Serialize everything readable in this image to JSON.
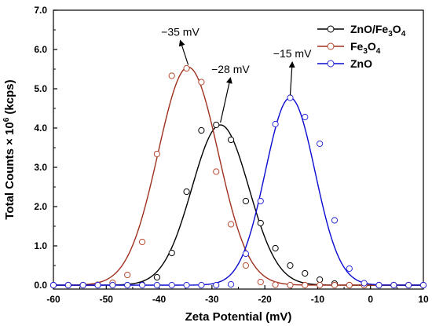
{
  "chart_data": {
    "type": "line",
    "xlabel": "Zeta Potential (mV)",
    "ylabel": {
      "prefix": "Total Counts × 10",
      "sup": "6",
      "suffix": " (kcps)"
    },
    "xlim": [
      -60,
      10
    ],
    "ylim": [
      -0.1,
      7.0
    ],
    "xticks": [
      "-60",
      "-50",
      "-40",
      "-30",
      "-20",
      "-10",
      "0",
      "10"
    ],
    "xtick_values": [
      -60,
      -50,
      -40,
      -30,
      -20,
      -10,
      0,
      10
    ],
    "yticks": [
      "0.0",
      "1.0",
      "2.0",
      "3.0",
      "4.0",
      "5.0",
      "6.0",
      "7.0"
    ],
    "ytick_values": [
      0,
      1,
      2,
      3,
      4,
      5,
      6,
      7
    ],
    "legend_position": "top-right",
    "series": [
      {
        "key": "znofe",
        "name": "ZnO/Fe₃O₄",
        "legend": {
          "main": "ZnO/Fe",
          "sub": "3",
          "mid": "O",
          "sub2": "4"
        },
        "color": "#000000",
        "marker_edge": "#000000",
        "peak_mean": -28.4,
        "peak_sd": 5.4,
        "peak_height": 4.08,
        "markers_x": [
          -60,
          -57.2,
          -54.4,
          -51.6,
          -48.8,
          -46,
          -43.2,
          -40.4,
          -37.6,
          -34.8,
          -32,
          -29.2,
          -26.4,
          -23.6,
          -20.8,
          -18,
          -15.2,
          -12.4,
          -9.6,
          -6.8,
          -4,
          -1.2,
          1.6,
          4.4,
          7.2,
          10
        ],
        "markers_y": [
          0,
          0,
          0,
          0,
          0,
          0,
          0.01,
          0.2,
          0.82,
          2.38,
          3.94,
          4.08,
          3.7,
          2.14,
          1.58,
          0.94,
          0.5,
          0.3,
          0.14,
          0.04,
          0,
          0,
          0,
          0,
          0,
          0
        ]
      },
      {
        "key": "fe",
        "name": "Fe₃O₄",
        "legend": {
          "main": "Fe",
          "sub": "3",
          "mid": "O",
          "sub2": "4"
        },
        "color": "#a0301e",
        "marker_edge": "#b5472e",
        "peak_mean": -34.5,
        "peak_sd": 5.7,
        "peak_height": 5.55,
        "markers_x": [
          -60,
          -57.2,
          -54.4,
          -51.6,
          -48.8,
          -46,
          -43.2,
          -40.4,
          -37.6,
          -34.8,
          -32,
          -29.2,
          -26.4,
          -23.6,
          -20.8,
          -18,
          -15.2,
          -12.4,
          -9.6,
          -6.8,
          -4,
          -1.2,
          1.6,
          4.4,
          7.2,
          10
        ],
        "markers_y": [
          0,
          0,
          0,
          0.01,
          0.06,
          0.26,
          1.1,
          3.34,
          5.33,
          5.52,
          5.17,
          2.89,
          1.55,
          0.5,
          0.08,
          0.01,
          0,
          0,
          0,
          0,
          0,
          0,
          0,
          0,
          0,
          0
        ]
      },
      {
        "key": "zno",
        "name": "ZnO",
        "legend": {
          "main": "ZnO",
          "sub": "",
          "mid": "",
          "sub2": ""
        },
        "color": "#0a0ad0",
        "marker_edge": "#2a2ad8",
        "peak_mean": -15.2,
        "peak_sd": 4.7,
        "peak_height": 4.77,
        "markers_x": [
          -60,
          -57.2,
          -54.4,
          -51.6,
          -48.8,
          -46,
          -43.2,
          -40.4,
          -37.6,
          -34.8,
          -32,
          -29.2,
          -26.4,
          -23.6,
          -20.8,
          -18,
          -15.2,
          -12.4,
          -9.6,
          -6.8,
          -4,
          -1.2,
          1.6,
          4.4,
          7.2,
          10
        ],
        "markers_y": [
          0,
          0,
          0,
          0,
          0,
          0,
          0,
          0,
          0,
          0,
          0,
          0,
          0.02,
          0.8,
          2.14,
          4.1,
          4.77,
          4.28,
          3.6,
          1.65,
          0.42,
          0.05,
          0,
          0,
          0,
          0
        ]
      }
    ],
    "annotations": [
      {
        "text": "−35 mV",
        "at_x": -34.5,
        "at_y": 5.55,
        "text_x": -36,
        "text_y": 6.35
      },
      {
        "text": "−28 mV",
        "at_x": -28.4,
        "at_y": 4.08,
        "text_x": -26.5,
        "text_y": 5.4
      },
      {
        "text": "−15 mV",
        "at_x": -15.2,
        "at_y": 4.77,
        "text_x": -14.8,
        "text_y": 5.8
      }
    ]
  }
}
